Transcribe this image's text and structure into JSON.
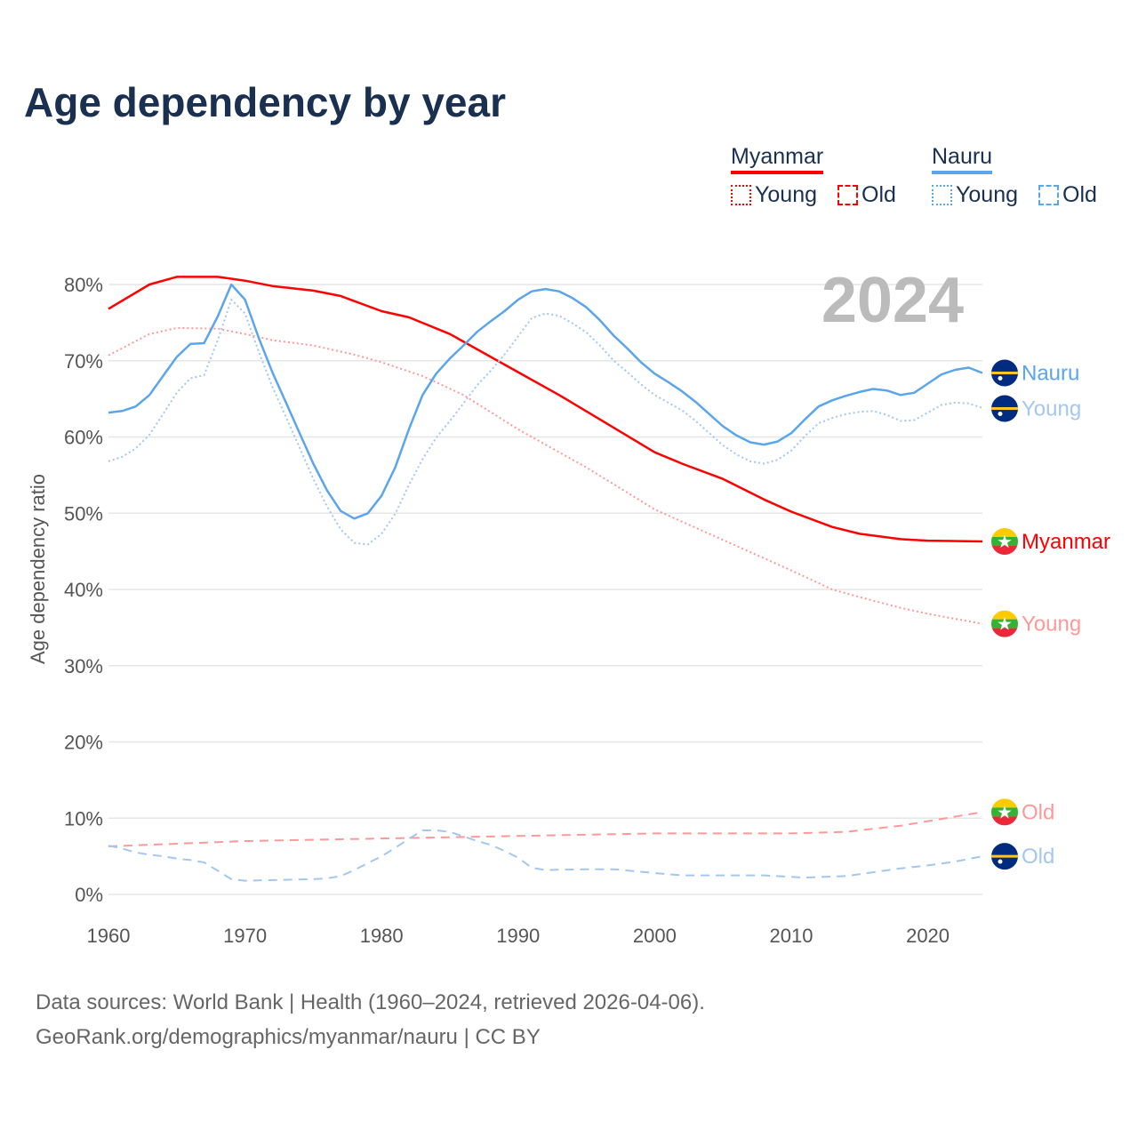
{
  "title": "Age dependency by year",
  "legend": {
    "countries": [
      {
        "name": "Myanmar",
        "color": "#ff0000",
        "light": "#ff9999",
        "young": "Young",
        "old": "Old"
      },
      {
        "name": "Nauru",
        "color": "#5aa5ec",
        "light": "#a3c7ef",
        "young": "Young",
        "old": "Old"
      }
    ]
  },
  "source": {
    "line1": "Data sources: World Bank | Health (1960–2024, retrieved 2026-04-06).",
    "line2": "GeoRank.org/demographics/myanmar/nauru | CC BY"
  },
  "chart_data": {
    "type": "line",
    "title": "Age dependency by year",
    "year_label": "2024",
    "ylabel": "Age dependency ratio",
    "xlim": [
      1960,
      2024
    ],
    "ylim": [
      0,
      80
    ],
    "xticks": [
      "1960",
      "1970",
      "1980",
      "1990",
      "2000",
      "2010",
      "2020"
    ],
    "yticks": [
      "0%",
      "10%",
      "20%",
      "30%",
      "40%",
      "50%",
      "60%",
      "70%",
      "80%"
    ],
    "grid": true,
    "series": [
      {
        "name": "Myanmar",
        "label": "Myanmar",
        "style": "solid",
        "color": "#ff0000",
        "flag": "myanmar",
        "x": [
          1960,
          1963,
          1965,
          1968,
          1970,
          1972,
          1975,
          1977,
          1980,
          1982,
          1985,
          1988,
          1990,
          1993,
          1996,
          2000,
          2002,
          2005,
          2008,
          2010,
          2013,
          2015,
          2018,
          2020,
          2024
        ],
        "y": [
          76.8,
          80,
          81,
          81,
          80.5,
          79.8,
          79.2,
          78.5,
          76.5,
          75.7,
          73.5,
          70.5,
          68.5,
          65.5,
          62.3,
          58,
          56.5,
          54.5,
          51.8,
          50.2,
          48.2,
          47.3,
          46.6,
          46.4,
          46.3
        ]
      },
      {
        "name": "Myanmar Young",
        "label": "Young",
        "style": "dotted",
        "color": "#ff9999",
        "flag": "myanmar",
        "x": [
          1960,
          1963,
          1965,
          1968,
          1970,
          1972,
          1975,
          1978,
          1980,
          1983,
          1986,
          1990,
          1995,
          2000,
          2005,
          2010,
          2013,
          2015,
          2018,
          2020,
          2024
        ],
        "y": [
          70.7,
          73.5,
          74.3,
          74.2,
          73.5,
          72.7,
          72,
          70.8,
          69.8,
          68,
          65.5,
          61,
          56,
          50.5,
          46.5,
          42.5,
          40,
          39,
          37.6,
          36.8,
          35.5
        ]
      },
      {
        "name": "Myanmar Old",
        "label": "Old",
        "style": "dashed",
        "color": "#ff9999",
        "flag": "myanmar",
        "x": [
          1960,
          1970,
          1985,
          2000,
          2010,
          2014,
          2018,
          2024
        ],
        "y": [
          6.3,
          7,
          7.5,
          8,
          8,
          8.2,
          9,
          10.8
        ]
      },
      {
        "name": "Nauru",
        "label": "Nauru",
        "style": "solid",
        "color": "#5aa5ec",
        "flag": "nauru",
        "x": [
          1960,
          1961,
          1962,
          1963,
          1964,
          1965,
          1966,
          1967,
          1968,
          1969,
          1970,
          1971,
          1972,
          1973,
          1974,
          1975,
          1976,
          1977,
          1978,
          1979,
          1980,
          1981,
          1982,
          1983,
          1984,
          1985,
          1986,
          1987,
          1988,
          1989,
          1990,
          1991,
          1992,
          1993,
          1994,
          1995,
          1996,
          1997,
          1998,
          1999,
          2000,
          2001,
          2002,
          2003,
          2004,
          2005,
          2006,
          2007,
          2008,
          2009,
          2010,
          2011,
          2012,
          2013,
          2014,
          2015,
          2016,
          2017,
          2018,
          2019,
          2020,
          2021,
          2022,
          2023,
          2024
        ],
        "y": [
          63.2,
          63.4,
          64,
          65.5,
          68,
          70.5,
          72.2,
          72.3,
          75.8,
          80,
          78,
          73,
          68.5,
          64.5,
          60.5,
          56.5,
          53,
          50.3,
          49.3,
          50,
          52.3,
          56,
          61,
          65.5,
          68.3,
          70.3,
          72,
          73.8,
          75.2,
          76.5,
          78,
          79.1,
          79.4,
          79.1,
          78.2,
          77,
          75.3,
          73.3,
          71.6,
          69.8,
          68.3,
          67.2,
          66,
          64.6,
          63,
          61.4,
          60.2,
          59.3,
          59,
          59.4,
          60.5,
          62.3,
          64,
          64.8,
          65.4,
          65.9,
          66.3,
          66.1,
          65.5,
          65.8,
          67,
          68.2,
          68.8,
          69.1,
          68.4
        ]
      },
      {
        "name": "Nauru Young",
        "label": "Young",
        "style": "dotted",
        "color": "#a3c7ef",
        "flag": "nauru",
        "x": [
          1960,
          1961,
          1962,
          1963,
          1964,
          1965,
          1966,
          1967,
          1968,
          1969,
          1970,
          1971,
          1972,
          1973,
          1974,
          1975,
          1976,
          1977,
          1978,
          1979,
          1980,
          1981,
          1982,
          1983,
          1984,
          1985,
          1986,
          1987,
          1988,
          1989,
          1990,
          1991,
          1992,
          1993,
          1994,
          1995,
          1996,
          1997,
          1998,
          1999,
          2000,
          2001,
          2002,
          2003,
          2004,
          2005,
          2006,
          2007,
          2008,
          2009,
          2010,
          2011,
          2012,
          2013,
          2014,
          2015,
          2016,
          2017,
          2018,
          2019,
          2020,
          2021,
          2022,
          2023,
          2024
        ],
        "y": [
          56.8,
          57.4,
          58.5,
          60.3,
          63,
          65.8,
          67.7,
          68.1,
          72.7,
          78,
          76.2,
          71.2,
          66.6,
          62.6,
          58.6,
          54.5,
          50.9,
          47.9,
          46.1,
          45.9,
          47.3,
          49.9,
          53.7,
          57.1,
          59.9,
          62.1,
          64.4,
          66.8,
          68.7,
          70.8,
          73.2,
          75.6,
          76.2,
          75.9,
          74.9,
          73.7,
          72,
          70,
          68.5,
          66.9,
          65.5,
          64.5,
          63.5,
          62.1,
          60.5,
          58.9,
          57.7,
          56.8,
          56.5,
          57,
          58.2,
          60.1,
          61.8,
          62.5,
          63,
          63.3,
          63.4,
          62.9,
          62.1,
          62.2,
          63.2,
          64.2,
          64.5,
          64.4,
          63.8
        ]
      },
      {
        "name": "Nauru Old",
        "label": "Old",
        "style": "dashed",
        "color": "#a3c7ef",
        "flag": "nauru",
        "x": [
          1960,
          1961,
          1962,
          1963,
          1964,
          1965,
          1966,
          1967,
          1968,
          1969,
          1970,
          1975,
          1976,
          1977,
          1978,
          1979,
          1980,
          1981,
          1982,
          1983,
          1984,
          1985,
          1986,
          1987,
          1988,
          1989,
          1990,
          1991,
          1992,
          1995,
          1997,
          2000,
          2002,
          2008,
          2011,
          2014,
          2016,
          2018,
          2020,
          2022,
          2024
        ],
        "y": [
          6.4,
          6,
          5.5,
          5.2,
          5,
          4.7,
          4.5,
          4.2,
          3.1,
          2,
          1.8,
          2,
          2.1,
          2.4,
          3.2,
          4.1,
          5,
          6.1,
          7.3,
          8.4,
          8.4,
          8.2,
          7.6,
          7,
          6.5,
          5.7,
          4.8,
          3.5,
          3.2,
          3.3,
          3.3,
          2.8,
          2.5,
          2.5,
          2.2,
          2.4,
          2.9,
          3.4,
          3.8,
          4.3,
          5
        ]
      }
    ]
  }
}
